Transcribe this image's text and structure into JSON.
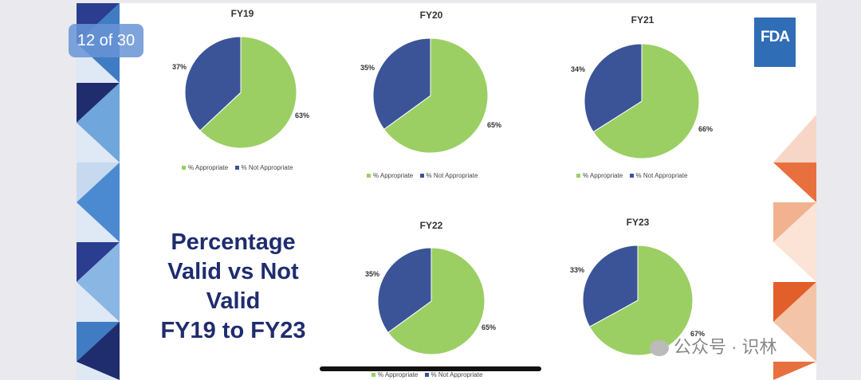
{
  "viewer": {
    "page_counter": "12 of 30"
  },
  "logo": {
    "text": "FDA"
  },
  "slide_title": [
    "Percentage",
    "Valid vs Not",
    "Valid",
    "FY19 to FY23"
  ],
  "watermark": {
    "text": "公众号 · 识林"
  },
  "colors": {
    "appropriate": "#9bcf63",
    "not_appropriate": "#3b5497"
  },
  "chart_data": [
    {
      "type": "pie",
      "title": "FY19",
      "categories": [
        "% Appropriate",
        "% Not Appropriate"
      ],
      "values": [
        63,
        37
      ],
      "labels": [
        "63%",
        "37%"
      ]
    },
    {
      "type": "pie",
      "title": "FY20",
      "categories": [
        "% Appropriate",
        "% Not Appropriate"
      ],
      "values": [
        65,
        35
      ],
      "labels": [
        "65%",
        "35%"
      ]
    },
    {
      "type": "pie",
      "title": "FY21",
      "categories": [
        "% Appropriate",
        "% Not Appropriate"
      ],
      "values": [
        66,
        34
      ],
      "labels": [
        "66%",
        "34%"
      ]
    },
    {
      "type": "pie",
      "title": "FY22",
      "categories": [
        "% Appropriate",
        "% Not Appropriate"
      ],
      "values": [
        65,
        35
      ],
      "labels": [
        "65%",
        "35%"
      ]
    },
    {
      "type": "pie",
      "title": "FY23",
      "categories": [
        "% Appropriate",
        "% Not Appropriate"
      ],
      "values": [
        67,
        33
      ],
      "labels": [
        "67%",
        "33%"
      ]
    }
  ]
}
